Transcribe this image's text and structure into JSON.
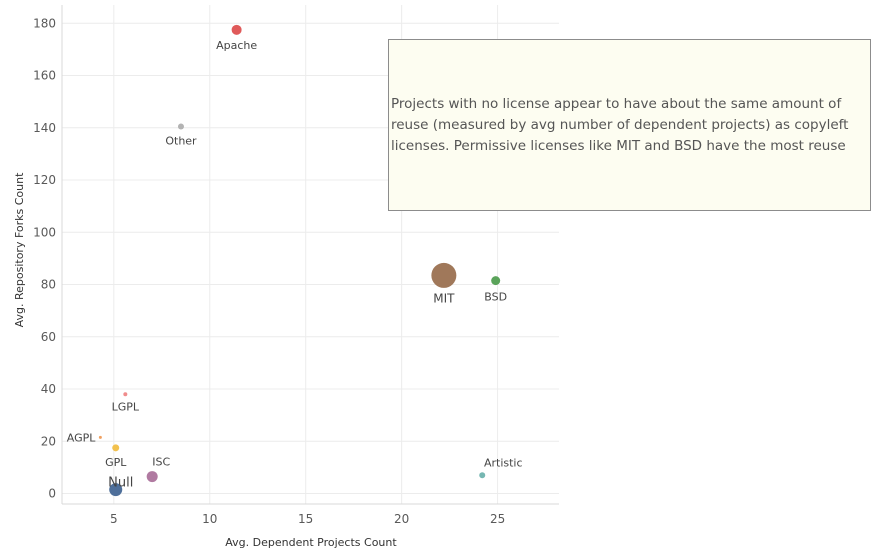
{
  "chart_data": {
    "type": "scatter",
    "title": "",
    "xlabel": "Avg. Dependent Projects Count",
    "ylabel": "Avg. Repository Forks Count",
    "xlim": [
      2.3,
      28.2
    ],
    "ylim": [
      -4,
      187
    ],
    "xticks": [
      5,
      10,
      15,
      20,
      25
    ],
    "yticks": [
      0,
      20,
      40,
      60,
      80,
      100,
      120,
      140,
      160,
      180
    ],
    "grid": true,
    "points": [
      {
        "label": "Apache",
        "x": 11.4,
        "y": 177.5,
        "size": 5,
        "color": "#e05a5a"
      },
      {
        "label": "Other",
        "x": 8.5,
        "y": 140.5,
        "size": 3,
        "color": "#b3b3b3"
      },
      {
        "label": "MIT",
        "x": 22.2,
        "y": 83.5,
        "size": 12.5,
        "color": "#a0785a"
      },
      {
        "label": "BSD",
        "x": 24.9,
        "y": 81.5,
        "size": 4.5,
        "color": "#5aa35a"
      },
      {
        "label": "LGPL",
        "x": 5.6,
        "y": 38.0,
        "size": 2,
        "color": "#f08c8c"
      },
      {
        "label": "AGPL",
        "x": 4.3,
        "y": 21.5,
        "size": 1.5,
        "color": "#f0a060"
      },
      {
        "label": "GPL",
        "x": 5.1,
        "y": 17.5,
        "size": 3.5,
        "color": "#f2c14e"
      },
      {
        "label": "ISC",
        "x": 7.0,
        "y": 6.5,
        "size": 5.5,
        "color": "#b07aa1"
      },
      {
        "label": "Null",
        "x": 5.1,
        "y": 1.5,
        "size": 6.5,
        "color": "#4e6f9a"
      },
      {
        "label": "Artistic",
        "x": 24.2,
        "y": 7.0,
        "size": 3,
        "color": "#76b7b2"
      }
    ]
  },
  "annotation": {
    "text": "Projects with no license appear to have about the same amount of reuse (measured by avg number of dependent projects) as copyleft licenses. Permissive licenses like MIT and BSD have the most reuse"
  }
}
